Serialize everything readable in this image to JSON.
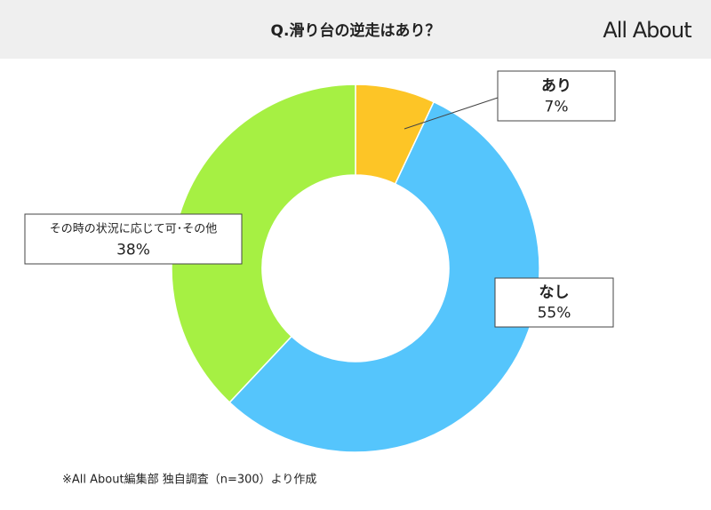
{
  "chart_data": {
    "type": "donut",
    "title": "Q.滑り台の逆走はあり？",
    "logo": "All About",
    "categories": [
      "あり",
      "なし",
      "その時の状況に応じて可･その他"
    ],
    "values": [
      7,
      55,
      38
    ],
    "value_labels": [
      "7%",
      "55%",
      "38%"
    ],
    "colors": [
      "#fdc526",
      "#55c5fc",
      "#a6f043"
    ],
    "note": "※All About編集部 独自調査（n=300）より作成"
  }
}
